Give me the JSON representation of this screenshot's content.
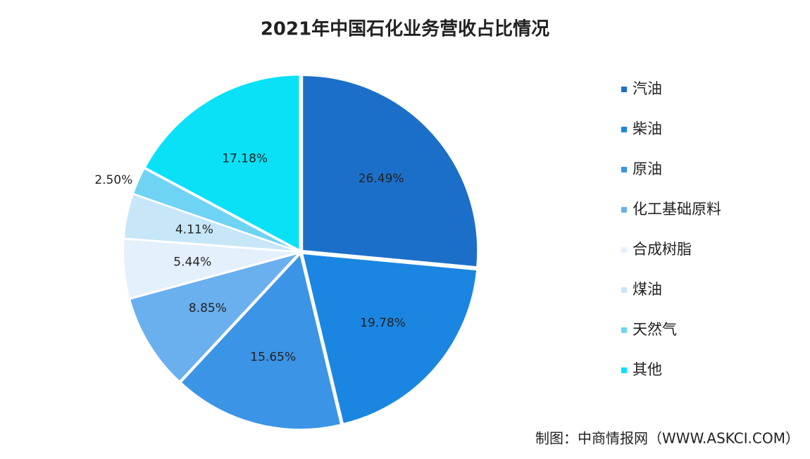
{
  "chart_data": {
    "type": "pie",
    "title": "2021年中国石化业务营收占比情况",
    "categories": [
      "汽油",
      "柴油",
      "原油",
      "化工基础原料",
      "合成树脂",
      "煤油",
      "天然气",
      "其他"
    ],
    "values": [
      26.49,
      19.78,
      15.65,
      8.85,
      5.44,
      4.11,
      2.5,
      17.18
    ],
    "value_labels": [
      "26.49%",
      "19.78%",
      "15.65%",
      "8.85%",
      "5.44%",
      "4.11%",
      "2.50%",
      "17.18%"
    ],
    "colors": [
      "#1c6fc8",
      "#1a86e2",
      "#3b94e6",
      "#6aafee",
      "#e4f0fb",
      "#c7e7f8",
      "#6fd3f4",
      "#0ae1f7"
    ],
    "legend": "right",
    "source": "制图：中商情报网（WWW.ASKCI.COM）"
  }
}
